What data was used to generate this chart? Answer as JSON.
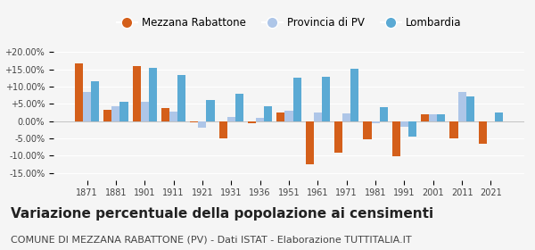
{
  "years": [
    1871,
    1881,
    1901,
    1911,
    1921,
    1931,
    1936,
    1951,
    1961,
    1971,
    1981,
    1991,
    2001,
    2011,
    2021
  ],
  "mezzana": [
    16.8,
    3.3,
    15.8,
    3.8,
    -0.4,
    -5.0,
    -0.5,
    2.5,
    -12.5,
    -9.0,
    -5.2,
    -10.2,
    2.0,
    -5.0,
    -6.5
  ],
  "provincia": [
    8.5,
    4.2,
    5.5,
    2.8,
    -1.8,
    1.2,
    1.0,
    3.0,
    2.5,
    2.2,
    -0.5,
    -1.5,
    2.0,
    8.5,
    0.0
  ],
  "lombardia": [
    11.5,
    5.5,
    15.5,
    13.3,
    6.0,
    7.8,
    4.3,
    12.5,
    12.8,
    15.2,
    4.0,
    -4.5,
    2.0,
    7.2,
    2.5
  ],
  "color_mezzana": "#d45f1a",
  "color_provincia": "#aec6e8",
  "color_lombardia": "#5baad4",
  "bar_width": 0.28,
  "ylim": [
    -17,
    22
  ],
  "yticks": [
    -15,
    -10,
    -5,
    0,
    5,
    10,
    15,
    20
  ],
  "ytick_labels": [
    "-15.00%",
    "-10.00%",
    "-5.00%",
    "0.00%",
    "+5.00%",
    "+10.00%",
    "+15.00%",
    "+20.00%"
  ],
  "title": "Variazione percentuale della popolazione ai censimenti",
  "subtitle": "COMUNE DI MEZZANA RABATTONE (PV) - Dati ISTAT - Elaborazione TUTTITALIA.IT",
  "legend_labels": [
    "Mezzana Rabattone",
    "Provincia di PV",
    "Lombardia"
  ],
  "background_color": "#f5f5f5",
  "grid_color": "#ffffff",
  "title_fontsize": 11,
  "subtitle_fontsize": 8
}
